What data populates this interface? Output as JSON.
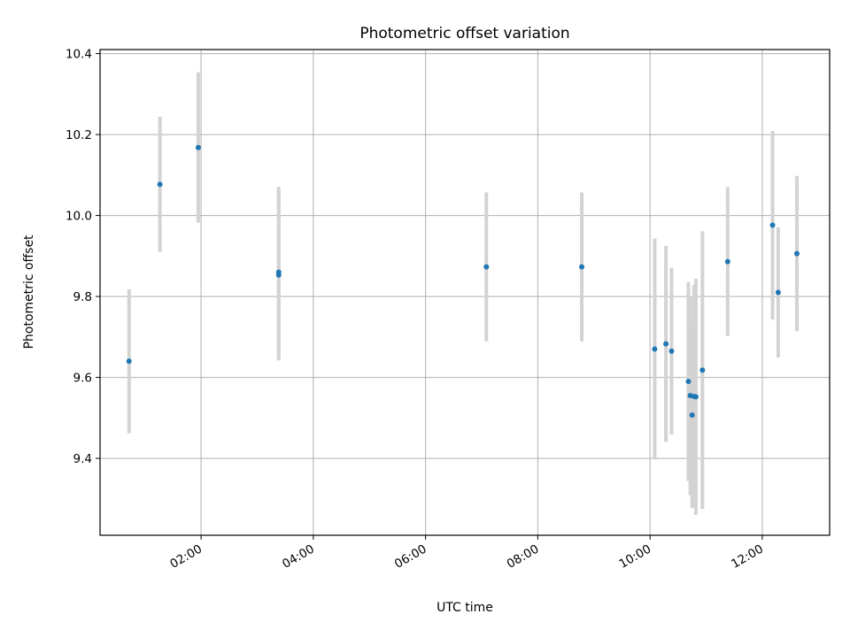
{
  "chart_data": {
    "type": "scatter",
    "title": "Photometric offset variation",
    "xlabel": "UTC time",
    "ylabel": "Photometric offset",
    "x_axis": {
      "kind": "time",
      "xlim": [
        "00:12",
        "13:12"
      ],
      "ticks": [
        "02:00",
        "04:00",
        "06:00",
        "08:00",
        "10:00",
        "12:00"
      ],
      "tick_rotation_deg": 30
    },
    "y_axis": {
      "ylim": [
        9.21,
        10.41
      ],
      "ticks": [
        "9.4",
        "9.6",
        "9.8",
        "10.0",
        "10.2",
        "10.4"
      ]
    },
    "grid": true,
    "legend": "none",
    "marker_color": "#1f77b4",
    "errorbar_color": "#d3d3d3",
    "series": [
      {
        "points": [
          {
            "x": "00:43",
            "y": 9.64,
            "err": 0.178
          },
          {
            "x": "01:16",
            "y": 10.077,
            "err": 0.167
          },
          {
            "x": "01:57",
            "y": 10.168,
            "err": 0.186
          },
          {
            "x": "03:23",
            "y": 9.86,
            "err": 0.211
          },
          {
            "x": "03:23",
            "y": 9.853,
            "err": 0.211
          },
          {
            "x": "07:05",
            "y": 9.873,
            "err": 0.184
          },
          {
            "x": "08:47",
            "y": 9.873,
            "err": 0.184
          },
          {
            "x": "10:05",
            "y": 9.67,
            "err": 0.273
          },
          {
            "x": "10:17",
            "y": 9.683,
            "err": 0.242
          },
          {
            "x": "10:23",
            "y": 9.665,
            "err": 0.206
          },
          {
            "x": "10:41",
            "y": 9.59,
            "err": 0.246
          },
          {
            "x": "10:43",
            "y": 9.555,
            "err": 0.246
          },
          {
            "x": "10:45",
            "y": 9.507,
            "err": 0.23
          },
          {
            "x": "10:47",
            "y": 9.553,
            "err": 0.275
          },
          {
            "x": "10:49",
            "y": 9.552,
            "err": 0.292
          },
          {
            "x": "10:56",
            "y": 9.618,
            "err": 0.343
          },
          {
            "x": "11:23",
            "y": 9.886,
            "err": 0.184
          },
          {
            "x": "12:11",
            "y": 9.976,
            "err": 0.233
          },
          {
            "x": "12:17",
            "y": 9.81,
            "err": 0.161
          },
          {
            "x": "12:37",
            "y": 9.906,
            "err": 0.192
          }
        ]
      }
    ]
  }
}
